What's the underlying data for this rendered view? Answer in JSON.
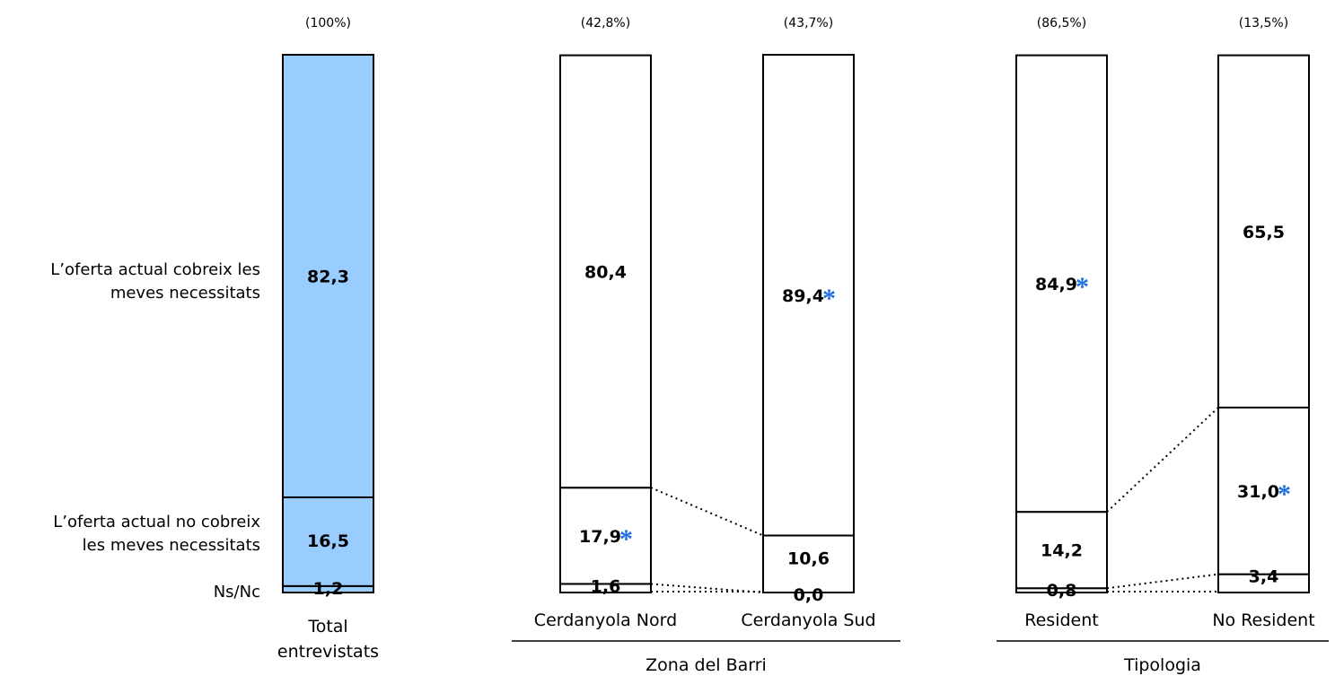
{
  "chart_data": {
    "type": "bar",
    "stacked": true,
    "orientation": "vertical",
    "ylim": [
      0,
      100
    ],
    "categories": [
      "Total entrevistats",
      "Cerdanyola Nord",
      "Cerdanyola Sud",
      "Resident",
      "No Resident"
    ],
    "category_shares": [
      "(100%)",
      "(42,8%)",
      "(43,7%)",
      "(86,5%)",
      "(13,5%)"
    ],
    "groups": [
      {
        "label": "Zona del Barri",
        "categories": [
          "Cerdanyola Nord",
          "Cerdanyola Sud"
        ]
      },
      {
        "label": "Tipologia",
        "categories": [
          "Resident",
          "No Resident"
        ]
      }
    ],
    "series": [
      {
        "name": "Ns/Nc",
        "values": [
          1.2,
          1.6,
          0.0,
          0.8,
          3.4
        ],
        "labels": [
          "1,2",
          "1,6",
          "0,0",
          "0,8",
          "3,4"
        ],
        "significant": [
          false,
          false,
          false,
          false,
          false
        ]
      },
      {
        "name": "L’oferta actual no cobreix les meves necessitats",
        "values": [
          16.5,
          17.9,
          10.6,
          14.2,
          31.0
        ],
        "labels": [
          "16,5",
          "17,9",
          "10,6",
          "14,2",
          "31,0"
        ],
        "significant": [
          false,
          true,
          false,
          false,
          true
        ]
      },
      {
        "name": "L’oferta actual cobreix les meves necessitats",
        "values": [
          82.3,
          80.4,
          89.4,
          84.9,
          65.5
        ],
        "labels": [
          "82,3",
          "80,4",
          "89,4",
          "84,9",
          "65,5"
        ],
        "significant": [
          false,
          false,
          true,
          true,
          false
        ]
      }
    ],
    "legend": [
      "L’oferta actual cobreix les",
      "meves necessitats",
      "L’oferta actual no cobreix",
      "les meves necessitats",
      "Ns/Nc"
    ],
    "category_label_lines": [
      [
        "Total",
        "entrevistats"
      ],
      [
        "Cerdanyola Nord"
      ],
      [
        "Cerdanyola Sud"
      ],
      [
        "Resident"
      ],
      [
        "No Resident"
      ]
    ],
    "significance_marker": "*",
    "colors": {
      "highlight_fill": "#99ccff",
      "plain_fill": "#ffffff",
      "outline": "#000000",
      "marker": "#1f6fe0"
    }
  }
}
